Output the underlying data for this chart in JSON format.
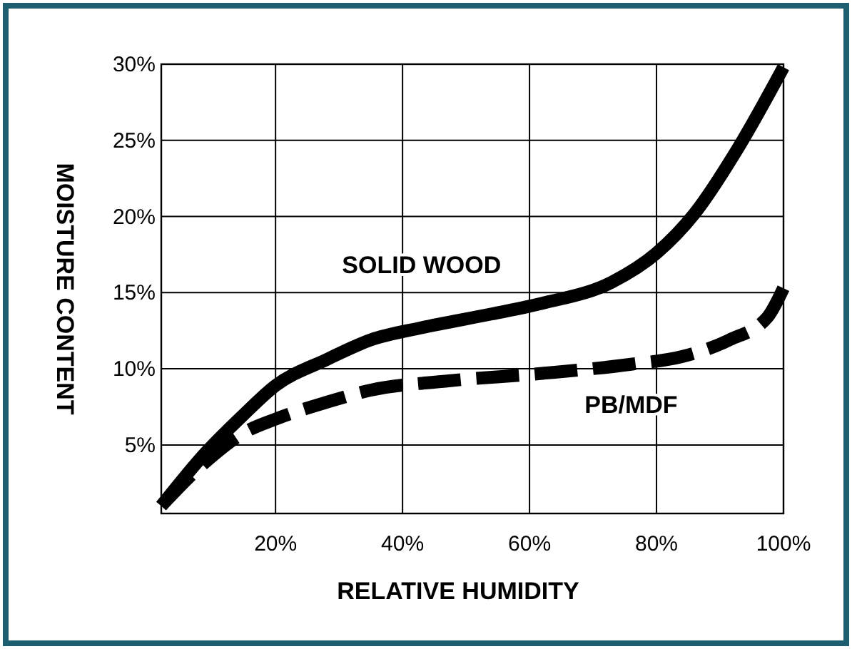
{
  "chart_data": {
    "type": "line",
    "xlabel": "RELATIVE HUMIDITY",
    "ylabel": "MOISTURE CONTENT",
    "xlim": [
      2,
      100
    ],
    "xticks": [
      {
        "value": 20,
        "label": "20%"
      },
      {
        "value": 40,
        "label": "40%"
      },
      {
        "value": 60,
        "label": "60%"
      },
      {
        "value": 80,
        "label": "80%"
      },
      {
        "value": 100,
        "label": "100%"
      }
    ],
    "ylim": [
      0.5,
      30
    ],
    "yticks": [
      {
        "value": 5,
        "label": "5%"
      },
      {
        "value": 10,
        "label": "10%"
      },
      {
        "value": 15,
        "label": "15%"
      },
      {
        "value": 20,
        "label": "20%"
      },
      {
        "value": 25,
        "label": "25%"
      },
      {
        "value": 30,
        "label": "30%"
      }
    ],
    "grid": true,
    "marker": "none",
    "series": [
      {
        "name": "SOLID WOOD",
        "color": "#000000",
        "line_style": "solid",
        "x": [
          2,
          9,
          15,
          20,
          28,
          35,
          43,
          54,
          62,
          73,
          80,
          86,
          93,
          100
        ],
        "values": [
          1,
          4.5,
          7,
          8.9,
          10.6,
          11.9,
          12.7,
          13.6,
          14.3,
          15.7,
          17.6,
          20.2,
          24.6,
          29.8
        ]
      },
      {
        "name": "PB/MDF",
        "color": "#000000",
        "line_style": "dashed",
        "x": [
          2,
          9,
          15,
          20,
          28,
          35,
          47,
          62,
          76,
          84,
          91.5,
          97.5,
          100
        ],
        "values": [
          1,
          3.9,
          5.8,
          6.7,
          7.8,
          8.6,
          9.2,
          9.7,
          10.3,
          10.8,
          11.9,
          13.4,
          15.3
        ]
      }
    ]
  }
}
